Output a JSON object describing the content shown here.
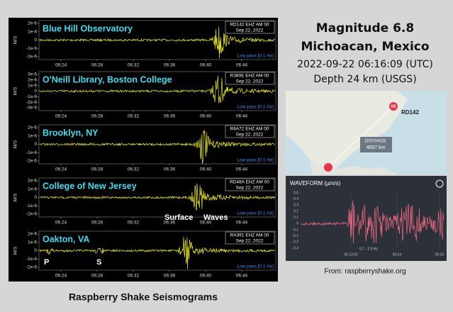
{
  "header": {
    "magnitude": "Magnitude 6.8",
    "location": "Michoacan, Mexico",
    "time": "2022-09-22 06:16:09 (UTC)",
    "depth": "Depth 24 km (USGS)"
  },
  "seismograms": {
    "caption": "Raspberry Shake Seismograms",
    "y_unit": "M/S",
    "x_ticks": [
      "06:24",
      "06:28",
      "06:32",
      "06:36",
      "06:40",
      "06:44"
    ],
    "panels": [
      {
        "station": "Blue Hill Observatory",
        "channel": "RD142 EHZ AM 00",
        "date": "Sep 22, 2022",
        "filter": "Low pass [0.1 Hz]",
        "y_ticks": [
          "2e-6",
          "1e-6",
          "0",
          "-1e-6",
          "-2e-6"
        ]
      },
      {
        "station": "O'Neill Library, Boston College",
        "channel": "R380E EHZ AM 00",
        "date": "Sep 22, 2022",
        "filter": "Low pass [0.1 Hz]",
        "y_ticks": [
          "3e-6",
          "2e-6",
          "1e-6",
          "0",
          "-1e-6",
          "-2e-6",
          "-3e-6"
        ]
      },
      {
        "station": "Brooklyn, NY",
        "channel": "R8A72 EHZ AM 00",
        "date": "Sep 22, 2022",
        "filter": "Low pass [0.1 Hz]",
        "y_ticks": [
          "2e-6",
          "1e-6",
          "0",
          "-1e-6",
          "-2e-6"
        ]
      },
      {
        "station": "College of New Jersey",
        "channel": "RD48A EHZ AM 00",
        "date": "Sep 22, 2022",
        "filter": "Low pass [0.1 Hz]",
        "y_ticks": [
          "2e-6",
          "1e-6",
          "0",
          "-1e-6",
          "-2e-6"
        ]
      },
      {
        "station": "Oakton, VA",
        "channel": "RA391 EHZ AM 00",
        "date": "Sep 22, 2022",
        "filter": "Low pass [0.1 Hz]",
        "y_ticks": [
          "2e-6",
          "1e-6",
          "0",
          "-1e-6",
          "-2e-6"
        ]
      }
    ],
    "annotations": {
      "p_wave": "P",
      "s_wave": "S",
      "surface": "Surface",
      "waves": "Waves"
    }
  },
  "map": {
    "marker": "SB",
    "station": "RD142",
    "distance_label": "DISTANCE",
    "distance": "4007 km"
  },
  "waveform": {
    "title": "WAVEFORM (µm/s)",
    "y_ticks": [
      "0.5",
      "0.4",
      "0.3",
      "0.2",
      "0.1",
      "0",
      "-0.1",
      "-0.2",
      "-0.3",
      "-0.4"
    ],
    "x_ticks": [
      "06:23:00",
      "06:24",
      "06:25"
    ],
    "note": "0.7 - 2.0 Hz"
  },
  "source": "From: raspberryshake.org"
}
